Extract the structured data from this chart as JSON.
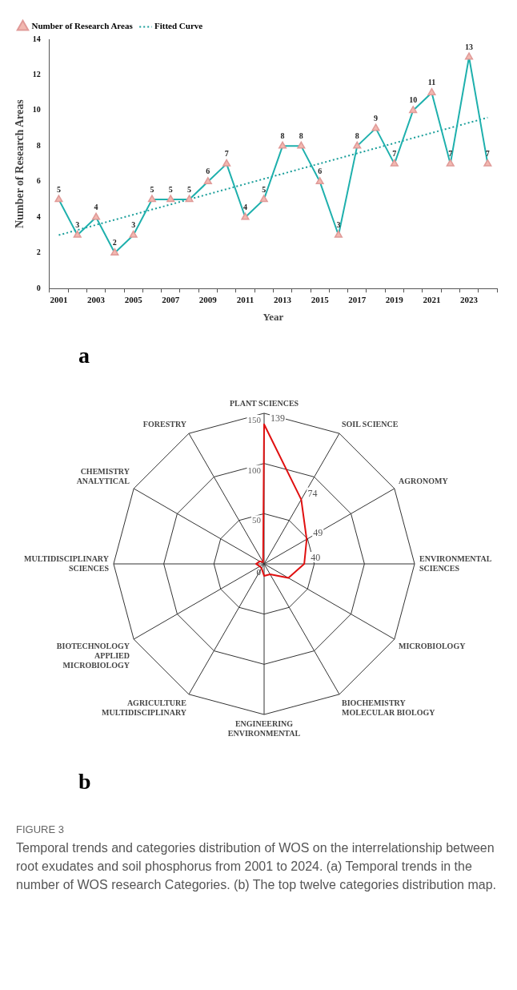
{
  "chart_data": [
    {
      "type": "line",
      "xlabel": "Year",
      "ylabel": "Number of Research Areas",
      "categories": [
        "2001",
        null,
        "2003",
        null,
        "2005",
        null,
        "2007",
        null,
        "2009",
        null,
        "2011",
        null,
        "2013",
        null,
        "2015",
        null,
        "2017",
        null,
        "2019",
        null,
        "2021",
        null,
        "2023",
        null
      ],
      "series": [
        {
          "name": "Number of Research Areas",
          "color": "#1fb0ad",
          "marker": "triangle",
          "line_style": "solid",
          "values": [
            5,
            3,
            4,
            2,
            3,
            5,
            5,
            5,
            6,
            7,
            4,
            5,
            8,
            8,
            6,
            3,
            8,
            9,
            7,
            10,
            11,
            7,
            13,
            7
          ],
          "value_labels": [
            "5",
            "3",
            "4",
            "2",
            "3",
            "5",
            "5",
            "5",
            "6",
            "7",
            "4",
            "5",
            "8",
            "8",
            "6",
            "3",
            "8",
            "9",
            "7",
            "10",
            "11",
            "7",
            "13",
            "7"
          ]
        },
        {
          "name": "Fitted Curve",
          "color": "#1a9e9a",
          "marker": "none",
          "line_style": "dotted",
          "values": [
            3.0,
            null,
            null,
            null,
            null,
            null,
            null,
            null,
            null,
            null,
            null,
            null,
            null,
            null,
            null,
            null,
            null,
            null,
            null,
            null,
            null,
            null,
            null,
            9.6
          ]
        }
      ],
      "ylim": [
        0,
        14
      ],
      "yticks": [
        0,
        2,
        4,
        6,
        8,
        10,
        12,
        14
      ],
      "grid": false,
      "legend": "top left",
      "annotations": [
        "a"
      ]
    },
    {
      "type": "radar",
      "categories": [
        "PLANT SCIENCES",
        "SOIL SCIENCE",
        "AGRONOMY",
        "ENVIRONMENTAL SCIENCES",
        "MICROBIOLOGY",
        "BIOCHEMISTRY MOLECULAR BIOLOGY",
        "ENGINEERING ENVIRONMENTAL",
        "AGRICULTURE MULTIDISCIPLINARY",
        "BIOTECHNOLOGY APPLIED MICROBIOLOGY",
        "MULTIDISCIPLINARY SCIENCES",
        "CHEMISTRY ANALYTICAL",
        "FORESTRY"
      ],
      "series": [
        {
          "color": "#e01010",
          "values": [
            139,
            74,
            49,
            40,
            28,
            12,
            12,
            5,
            5,
            8,
            5,
            2
          ],
          "value_labels": [
            "139",
            "74",
            "49",
            "40",
            null,
            null,
            null,
            null,
            null,
            null,
            null,
            null
          ]
        }
      ],
      "ylim": [
        0,
        150
      ],
      "yticks": [
        0,
        50,
        100,
        150
      ],
      "grid": true,
      "legend": false,
      "marker": "none",
      "annotations": [
        "b",
        "FIGURE 3",
        "Temporal trends and categories distribution of WOS on the interrelationship between root exudates and soil phosphorus from 2001 to 2024. (a) Temporal trends in the number of WOS research Categories. (b) The top twelve categories distribution map."
      ]
    }
  ]
}
